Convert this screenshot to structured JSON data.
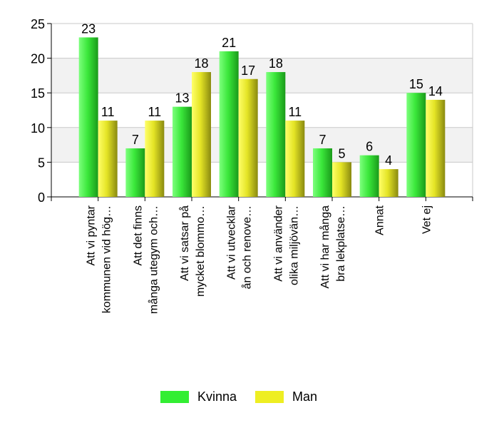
{
  "chart_data": {
    "type": "bar",
    "categories": [
      [
        "Att vi pyntar",
        "kommunen vid hög…"
      ],
      [
        "Att det finns",
        "många utegym och…"
      ],
      [
        "Att vi satsar på",
        "mycket blommo…"
      ],
      [
        "Att vi utvecklar",
        "ån och renove…"
      ],
      [
        "Att vi använder",
        "olika miljövän…"
      ],
      [
        "Att vi har många",
        "bra lekplatse…"
      ],
      [
        "Annat"
      ],
      [
        "Vet ej"
      ]
    ],
    "series": [
      {
        "name": "Kvinna",
        "values": [
          23,
          7,
          13,
          21,
          18,
          7,
          6,
          15
        ],
        "color": "#33ee33"
      },
      {
        "name": "Man",
        "values": [
          11,
          11,
          18,
          17,
          11,
          5,
          4,
          14
        ],
        "color": "#eeee22"
      }
    ],
    "ylim": [
      0,
      25
    ],
    "yticks": [
      0,
      5,
      10,
      15,
      20,
      25
    ],
    "grid": true,
    "legend_position": "bottom"
  }
}
